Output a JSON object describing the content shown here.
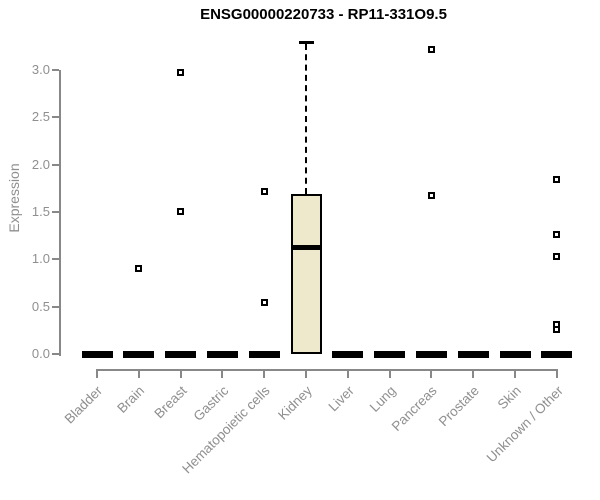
{
  "chart_data": {
    "type": "boxplot",
    "title": "ENSG00000220733 - RP11-331O9.5",
    "ylabel": "Expression",
    "xlabel": "",
    "y_ticks": [
      "0.0",
      "0.5",
      "1.0",
      "1.5",
      "2.0",
      "2.5",
      "3.0"
    ],
    "ylim": [
      0,
      3.3
    ],
    "grid": false,
    "legend": false,
    "categories": [
      "Bladder",
      "Brain",
      "Breast",
      "Gastric",
      "Hematopoietic cells",
      "Kidney",
      "Liver",
      "Lung",
      "Pancreas",
      "Prostate",
      "Skin",
      "Unknown / Other"
    ],
    "boxes": [
      {
        "category": "Bladder",
        "q1": 0,
        "median": 0,
        "q3": 0,
        "whisker_low": 0,
        "whisker_high": 0,
        "outliers": []
      },
      {
        "category": "Brain",
        "q1": 0,
        "median": 0,
        "q3": 0,
        "whisker_low": 0,
        "whisker_high": 0,
        "outliers": [
          0.9
        ]
      },
      {
        "category": "Breast",
        "q1": 0,
        "median": 0,
        "q3": 0,
        "whisker_low": 0,
        "whisker_high": 0,
        "outliers": [
          2.97,
          1.5
        ]
      },
      {
        "category": "Gastric",
        "q1": 0,
        "median": 0,
        "q3": 0,
        "whisker_low": 0,
        "whisker_high": 0,
        "outliers": []
      },
      {
        "category": "Hematopoietic cells",
        "q1": 0,
        "median": 0,
        "q3": 0,
        "whisker_low": 0,
        "whisker_high": 0,
        "outliers": [
          1.72,
          0.54
        ]
      },
      {
        "category": "Kidney",
        "q1": 0,
        "median": 1.13,
        "q3": 1.69,
        "whisker_low": 0,
        "whisker_high": 3.3,
        "outliers": []
      },
      {
        "category": "Liver",
        "q1": 0,
        "median": 0,
        "q3": 0,
        "whisker_low": 0,
        "whisker_high": 0,
        "outliers": []
      },
      {
        "category": "Lung",
        "q1": 0,
        "median": 0,
        "q3": 0,
        "whisker_low": 0,
        "whisker_high": 0,
        "outliers": []
      },
      {
        "category": "Pancreas",
        "q1": 0,
        "median": 0,
        "q3": 0,
        "whisker_low": 0,
        "whisker_high": 0,
        "outliers": [
          3.22,
          1.67
        ]
      },
      {
        "category": "Prostate",
        "q1": 0,
        "median": 0,
        "q3": 0,
        "whisker_low": 0,
        "whisker_high": 0,
        "outliers": []
      },
      {
        "category": "Skin",
        "q1": 0,
        "median": 0,
        "q3": 0,
        "whisker_low": 0,
        "whisker_high": 0,
        "outliers": []
      },
      {
        "category": "Unknown / Other",
        "q1": 0,
        "median": 0,
        "q3": 0,
        "whisker_low": 0,
        "whisker_high": 0,
        "outliers": [
          1.84,
          1.26,
          1.03,
          0.31,
          0.26
        ]
      }
    ],
    "colors": {
      "box_fill": "#EEE8CD",
      "box_border": "#000000",
      "median": "#000000",
      "whisker": "#000000",
      "outlier": "#000000",
      "axis": "#888888",
      "tick_label": "#8f8f8f",
      "title": "#000000",
      "background": "#ffffff"
    }
  }
}
